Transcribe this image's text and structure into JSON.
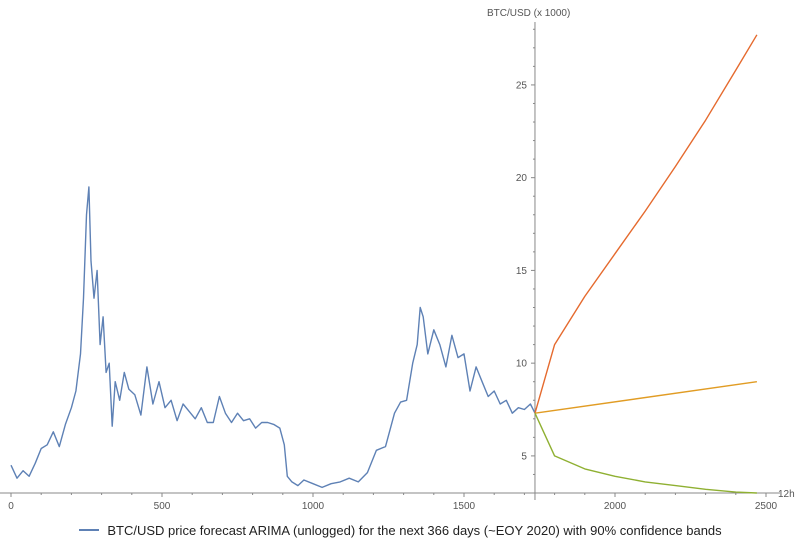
{
  "colors": {
    "history": "#5e81b5",
    "upper": "#e56a2e",
    "forecast": "#e19c24",
    "lower": "#8fb032",
    "axis": "#888888"
  },
  "legend": {
    "label": "BTC/USD price forecast ARIMA (unlogged) for the next 366 days (~EOY 2020) with 90% confidence bands"
  },
  "chart_data": {
    "type": "line",
    "ylabel": "BTC/USD (x 1000)",
    "xlabel": "12h",
    "x_ticks": [
      0,
      500,
      1000,
      1500,
      2000,
      2500
    ],
    "y_ticks": [
      5,
      10,
      15,
      20,
      25
    ],
    "xlim": [
      0,
      2500
    ],
    "ylim": [
      3,
      28.5
    ],
    "y_axis_at_x": 1735,
    "legend_position": "bottom-center",
    "series": [
      {
        "key": "history",
        "x": [
          0,
          20,
          40,
          60,
          80,
          100,
          120,
          140,
          160,
          180,
          200,
          215,
          230,
          240,
          250,
          258,
          265,
          275,
          285,
          295,
          305,
          315,
          325,
          335,
          345,
          360,
          375,
          390,
          410,
          430,
          450,
          470,
          490,
          510,
          530,
          550,
          570,
          590,
          610,
          630,
          650,
          670,
          690,
          710,
          730,
          750,
          770,
          790,
          810,
          830,
          850,
          870,
          890,
          905,
          915,
          930,
          950,
          970,
          1000,
          1030,
          1060,
          1090,
          1120,
          1150,
          1180,
          1210,
          1240,
          1270,
          1290,
          1310,
          1330,
          1345,
          1355,
          1365,
          1380,
          1400,
          1420,
          1440,
          1460,
          1480,
          1500,
          1520,
          1540,
          1560,
          1580,
          1600,
          1620,
          1640,
          1660,
          1680,
          1700,
          1720,
          1735
        ],
        "y": [
          4.5,
          3.8,
          4.2,
          3.9,
          4.6,
          5.4,
          5.6,
          6.3,
          5.5,
          6.7,
          7.6,
          8.5,
          10.5,
          13.5,
          18.0,
          19.5,
          15.5,
          13.5,
          15.0,
          11.0,
          12.5,
          9.5,
          10.0,
          6.6,
          9.0,
          8.0,
          9.5,
          8.6,
          8.3,
          7.2,
          9.8,
          7.8,
          9.0,
          7.6,
          8.0,
          6.9,
          7.8,
          7.4,
          7.0,
          7.6,
          6.8,
          6.8,
          8.2,
          7.3,
          6.8,
          7.3,
          6.9,
          7.0,
          6.5,
          6.8,
          6.8,
          6.7,
          6.5,
          5.6,
          3.9,
          3.6,
          3.4,
          3.7,
          3.5,
          3.3,
          3.5,
          3.6,
          3.8,
          3.6,
          4.1,
          5.3,
          5.5,
          7.3,
          7.9,
          8.0,
          10.0,
          11.0,
          13.0,
          12.5,
          10.5,
          11.8,
          11.0,
          9.8,
          11.5,
          10.3,
          10.5,
          8.5,
          9.8,
          9.0,
          8.2,
          8.5,
          7.8,
          8.0,
          7.3,
          7.6,
          7.5,
          7.8,
          7.3
        ]
      },
      {
        "key": "upper",
        "x": [
          1735,
          1800,
          1900,
          2000,
          2100,
          2200,
          2300,
          2400,
          2470
        ],
        "y": [
          7.3,
          11.0,
          13.6,
          15.9,
          18.2,
          20.6,
          23.1,
          25.8,
          27.7
        ]
      },
      {
        "key": "forecast",
        "x": [
          1735,
          2470
        ],
        "y": [
          7.3,
          9.0
        ]
      },
      {
        "key": "lower",
        "x": [
          1735,
          1800,
          1900,
          2000,
          2100,
          2200,
          2300,
          2400,
          2470
        ],
        "y": [
          7.3,
          5.0,
          4.3,
          3.9,
          3.6,
          3.4,
          3.2,
          3.05,
          3.0
        ]
      }
    ]
  }
}
